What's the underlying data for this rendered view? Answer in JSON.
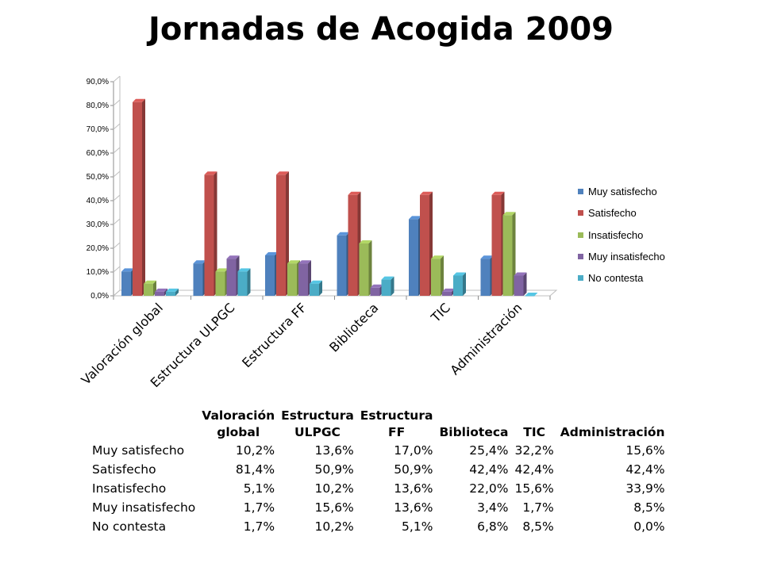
{
  "chart_data": {
    "type": "bar",
    "title": "Jornadas de Acogida 2009",
    "categories": [
      "Valoración global",
      "Estructura ULPGC",
      "Estructura FF",
      "Biblioteca",
      "TIC",
      "Administración"
    ],
    "series": [
      {
        "name": "Muy satisfecho",
        "color": "#4F81BD",
        "values": [
          10.2,
          13.6,
          17.0,
          25.4,
          32.2,
          15.6
        ]
      },
      {
        "name": "Satisfecho",
        "color": "#C0504D",
        "values": [
          81.4,
          50.9,
          50.9,
          42.4,
          42.4,
          42.4
        ]
      },
      {
        "name": "Insatisfecho",
        "color": "#9BBB59",
        "values": [
          5.1,
          10.2,
          13.6,
          22.0,
          15.6,
          33.9
        ]
      },
      {
        "name": "Muy insatisfecho",
        "color": "#8064A2",
        "values": [
          1.7,
          15.6,
          13.6,
          3.4,
          1.7,
          8.5
        ]
      },
      {
        "name": "No contesta",
        "color": "#4BACC6",
        "values": [
          1.7,
          10.2,
          5.1,
          6.8,
          8.5,
          0.0
        ]
      }
    ],
    "yticks": [
      "0,0%",
      "10,0%",
      "20,0%",
      "30,0%",
      "40,0%",
      "50,0%",
      "60,0%",
      "70,0%",
      "80,0%",
      "90,0%"
    ],
    "ylim": [
      0,
      90
    ],
    "legend_position": "right",
    "grid": false
  },
  "table": {
    "headers": [
      [
        "Valoración",
        "global"
      ],
      [
        "Estructura",
        "ULPGC"
      ],
      [
        "Estructura",
        "FF"
      ],
      [
        "",
        "Biblioteca"
      ],
      [
        "",
        "TIC"
      ],
      [
        "",
        "Administración"
      ]
    ],
    "rows": [
      {
        "label": "Muy satisfecho",
        "cells": [
          "10,2%",
          "13,6%",
          "17,0%",
          "25,4%",
          "32,2%",
          "15,6%"
        ]
      },
      {
        "label": "Satisfecho",
        "cells": [
          "81,4%",
          "50,9%",
          "50,9%",
          "42,4%",
          "42,4%",
          "42,4%"
        ]
      },
      {
        "label": "Insatisfecho",
        "cells": [
          "5,1%",
          "10,2%",
          "13,6%",
          "22,0%",
          "15,6%",
          "33,9%"
        ]
      },
      {
        "label": "Muy insatisfecho",
        "cells": [
          "1,7%",
          "15,6%",
          "13,6%",
          "3,4%",
          "1,7%",
          "8,5%"
        ]
      },
      {
        "label": "No contesta",
        "cells": [
          "1,7%",
          "10,2%",
          "5,1%",
          "6,8%",
          "8,5%",
          "0,0%"
        ]
      }
    ]
  }
}
